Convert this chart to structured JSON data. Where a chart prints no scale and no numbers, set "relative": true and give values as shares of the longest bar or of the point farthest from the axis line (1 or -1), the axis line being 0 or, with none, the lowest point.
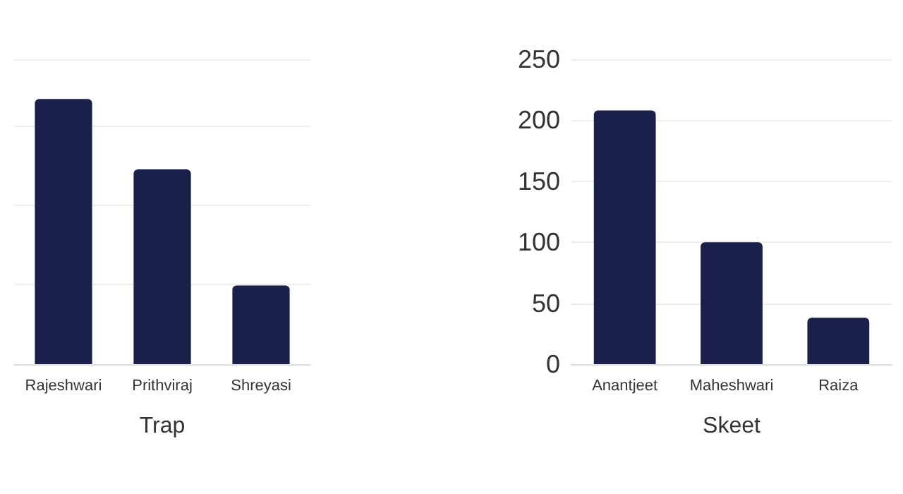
{
  "chart_data": [
    {
      "type": "bar",
      "xlabel": "Trap",
      "categories": [
        "Rajeshwari",
        "Prithviraj",
        "Shreyasi"
      ],
      "values": [
        1,
        0.735,
        0.297
      ],
      "color": "#1a2049",
      "relative": true,
      "grid": "y"
    },
    {
      "type": "bar",
      "xlabel": "Skeet",
      "categories": [
        "Anantjeet",
        "Maheshwari",
        "Raiza"
      ],
      "values": [
        208,
        100,
        38
      ],
      "color": "#1a2049",
      "ylim": [
        0,
        250
      ],
      "yticks": [
        0,
        50,
        100,
        150,
        200,
        250
      ],
      "grid": "y"
    }
  ]
}
